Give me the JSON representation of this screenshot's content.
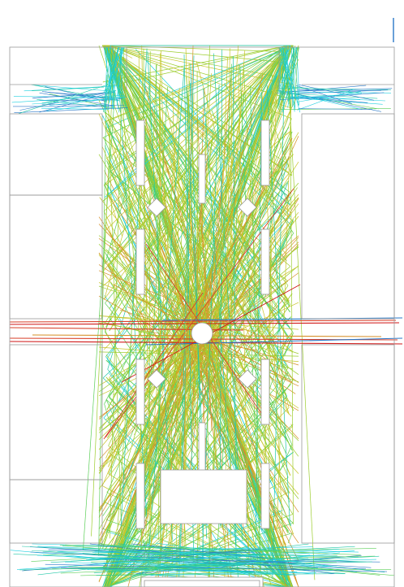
{
  "view": {
    "background": "#ffffff",
    "wall_color": "#9a9a9a",
    "colormap": [
      "#1fd0e0",
      "#22c8a8",
      "#5ccf58",
      "#9ccd2e",
      "#c8c52a",
      "#d6902a",
      "#d8402a",
      "#d01818"
    ],
    "accent_line_color": "#2a78c8"
  }
}
